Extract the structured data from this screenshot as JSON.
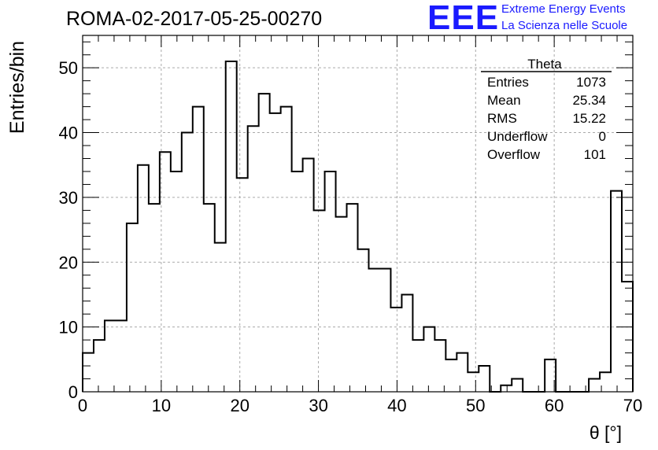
{
  "header": {
    "title": "ROMA-02-2017-05-25-00270",
    "logo_text": "EEE",
    "logo_line1": "Extreme Energy Events",
    "logo_line2": "La Scienza nelle Scuole",
    "logo_color": "#1a1aff"
  },
  "stats": {
    "name": "Theta",
    "rows": [
      {
        "label": "Entries",
        "value": "1073"
      },
      {
        "label": "Mean",
        "value": "25.34"
      },
      {
        "label": "RMS",
        "value": "15.22"
      },
      {
        "label": "Underflow",
        "value": "0"
      },
      {
        "label": "Overflow",
        "value": "101"
      }
    ]
  },
  "chart_data": {
    "type": "bar",
    "style": "step-histogram",
    "xlabel": "θ [°]",
    "ylabel": "Entries/bin",
    "xlim": [
      0,
      70
    ],
    "ylim": [
      0,
      55
    ],
    "grid": true,
    "bin_width": 1.4,
    "x_ticks": [
      0,
      10,
      20,
      30,
      40,
      50,
      60,
      70
    ],
    "y_ticks": [
      0,
      10,
      20,
      30,
      40,
      50
    ],
    "values": [
      6,
      8,
      11,
      11,
      26,
      35,
      29,
      37,
      34,
      40,
      44,
      29,
      23,
      51,
      33,
      41,
      46,
      43,
      44,
      34,
      36,
      28,
      34,
      27,
      29,
      22,
      19,
      19,
      13,
      15,
      8,
      10,
      8,
      5,
      6,
      3,
      4,
      0,
      1,
      2,
      0,
      0,
      5,
      0,
      0,
      0,
      2,
      3,
      31,
      17
    ]
  }
}
